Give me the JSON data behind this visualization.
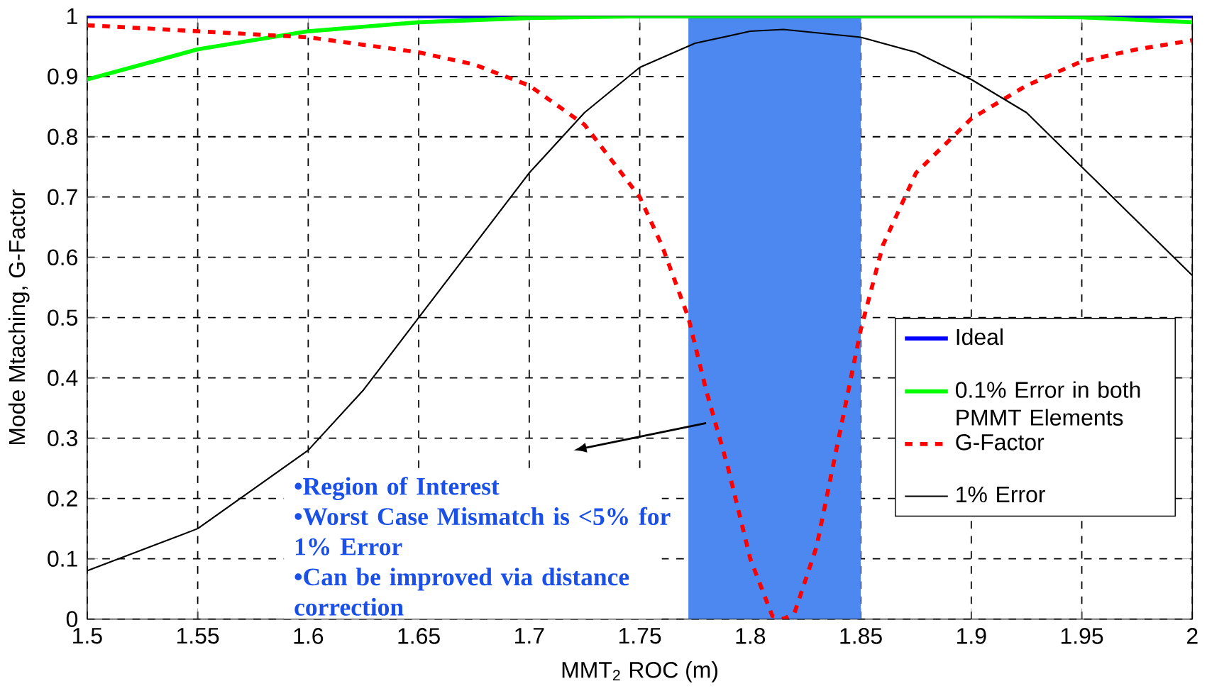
{
  "chart_data": {
    "type": "line",
    "xlabel": "MMT$_{2}$ ROC (m)",
    "ylabel": "Mode Mtaching, G-Factor",
    "xlim": [
      1.5,
      2
    ],
    "ylim": [
      0,
      1
    ],
    "xticks": [
      1.5,
      1.55,
      1.6,
      1.65,
      1.7,
      1.75,
      1.8,
      1.85,
      1.9,
      1.95,
      2
    ],
    "yticks": [
      0,
      0.1,
      0.2,
      0.3,
      0.4,
      0.5,
      0.6,
      0.7,
      0.8,
      0.9,
      1
    ],
    "grid": true,
    "legend": "bottom right",
    "marker": "none",
    "series": [
      {
        "name": "Ideal",
        "color": "#0000ff",
        "line_style": "solid",
        "x": [
          1.5,
          2.0
        ],
        "values": [
          1,
          1
        ]
      },
      {
        "name": "0.1% Error in both PMMT Elements",
        "color": "#00ff00",
        "line_style": "solid",
        "x": [
          1.5,
          1.55,
          1.6,
          1.65,
          1.7,
          1.75,
          1.8,
          1.9,
          1.95,
          2.0
        ],
        "values": [
          0.895,
          0.945,
          0.975,
          0.99,
          0.997,
          1.0,
          1.0,
          1.0,
          0.998,
          0.99
        ]
      },
      {
        "name": "G-Factor",
        "color": "#ff0000",
        "line_style": "dashed",
        "x": [
          1.5,
          1.55,
          1.6,
          1.65,
          1.675,
          1.7,
          1.725,
          1.75,
          1.76,
          1.772,
          1.78,
          1.79,
          1.8,
          1.81,
          1.815,
          1.82,
          1.83,
          1.84,
          1.85,
          1.86,
          1.875,
          1.9,
          1.925,
          1.95,
          1.975,
          2.0
        ],
        "values": [
          0.985,
          0.975,
          0.965,
          0.94,
          0.92,
          0.885,
          0.82,
          0.7,
          0.62,
          0.5,
          0.38,
          0.25,
          0.1,
          0.005,
          0.0,
          0.01,
          0.12,
          0.3,
          0.48,
          0.62,
          0.74,
          0.83,
          0.885,
          0.925,
          0.945,
          0.96
        ]
      },
      {
        "name": "1% Error",
        "color": "#000000",
        "line_style": "solid",
        "x": [
          1.5,
          1.55,
          1.6,
          1.625,
          1.65,
          1.675,
          1.7,
          1.725,
          1.75,
          1.775,
          1.8,
          1.815,
          1.85,
          1.875,
          1.9,
          1.925,
          1.95,
          1.975,
          2.0
        ],
        "values": [
          0.08,
          0.15,
          0.28,
          0.38,
          0.5,
          0.62,
          0.74,
          0.84,
          0.915,
          0.955,
          0.975,
          0.978,
          0.965,
          0.94,
          0.895,
          0.84,
          0.75,
          0.66,
          0.57
        ]
      }
    ],
    "bands": [
      {
        "axis": "x",
        "from": 1.772,
        "to": 1.85,
        "color": "#4d88f0"
      }
    ],
    "annotations": [
      "•Region of Interest",
      "•Worst Case Mismatch is <5% for 1% Error",
      "•Can be improved via distance correction"
    ]
  }
}
